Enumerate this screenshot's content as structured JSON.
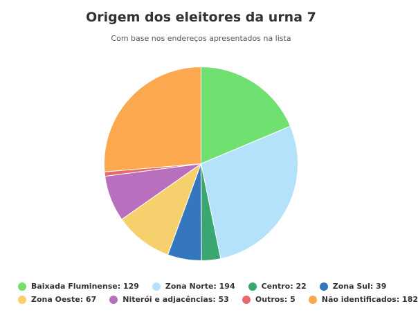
{
  "chart_data": {
    "type": "pie",
    "title": "Origem dos eleitores da urna 7",
    "subtitle": "Com base nos endereços apresentados na lista",
    "slices": [
      {
        "label": "Baixada Fluminense",
        "value": 129,
        "color": "#70e070"
      },
      {
        "label": "Zona Norte",
        "value": 194,
        "color": "#b3e2fa"
      },
      {
        "label": "Centro",
        "value": 22,
        "color": "#3aa672"
      },
      {
        "label": "Zona Sul",
        "value": 39,
        "color": "#3477be"
      },
      {
        "label": "Zona Oeste",
        "value": 67,
        "color": "#f5d06c"
      },
      {
        "label": "Niterói e adjacências",
        "value": 53,
        "color": "#b86fbd"
      },
      {
        "label": "Outros",
        "value": 5,
        "color": "#e66a6a"
      },
      {
        "label": "Não identificados",
        "value": 182,
        "color": "#fba84f"
      }
    ],
    "legend_position": "bottom"
  }
}
